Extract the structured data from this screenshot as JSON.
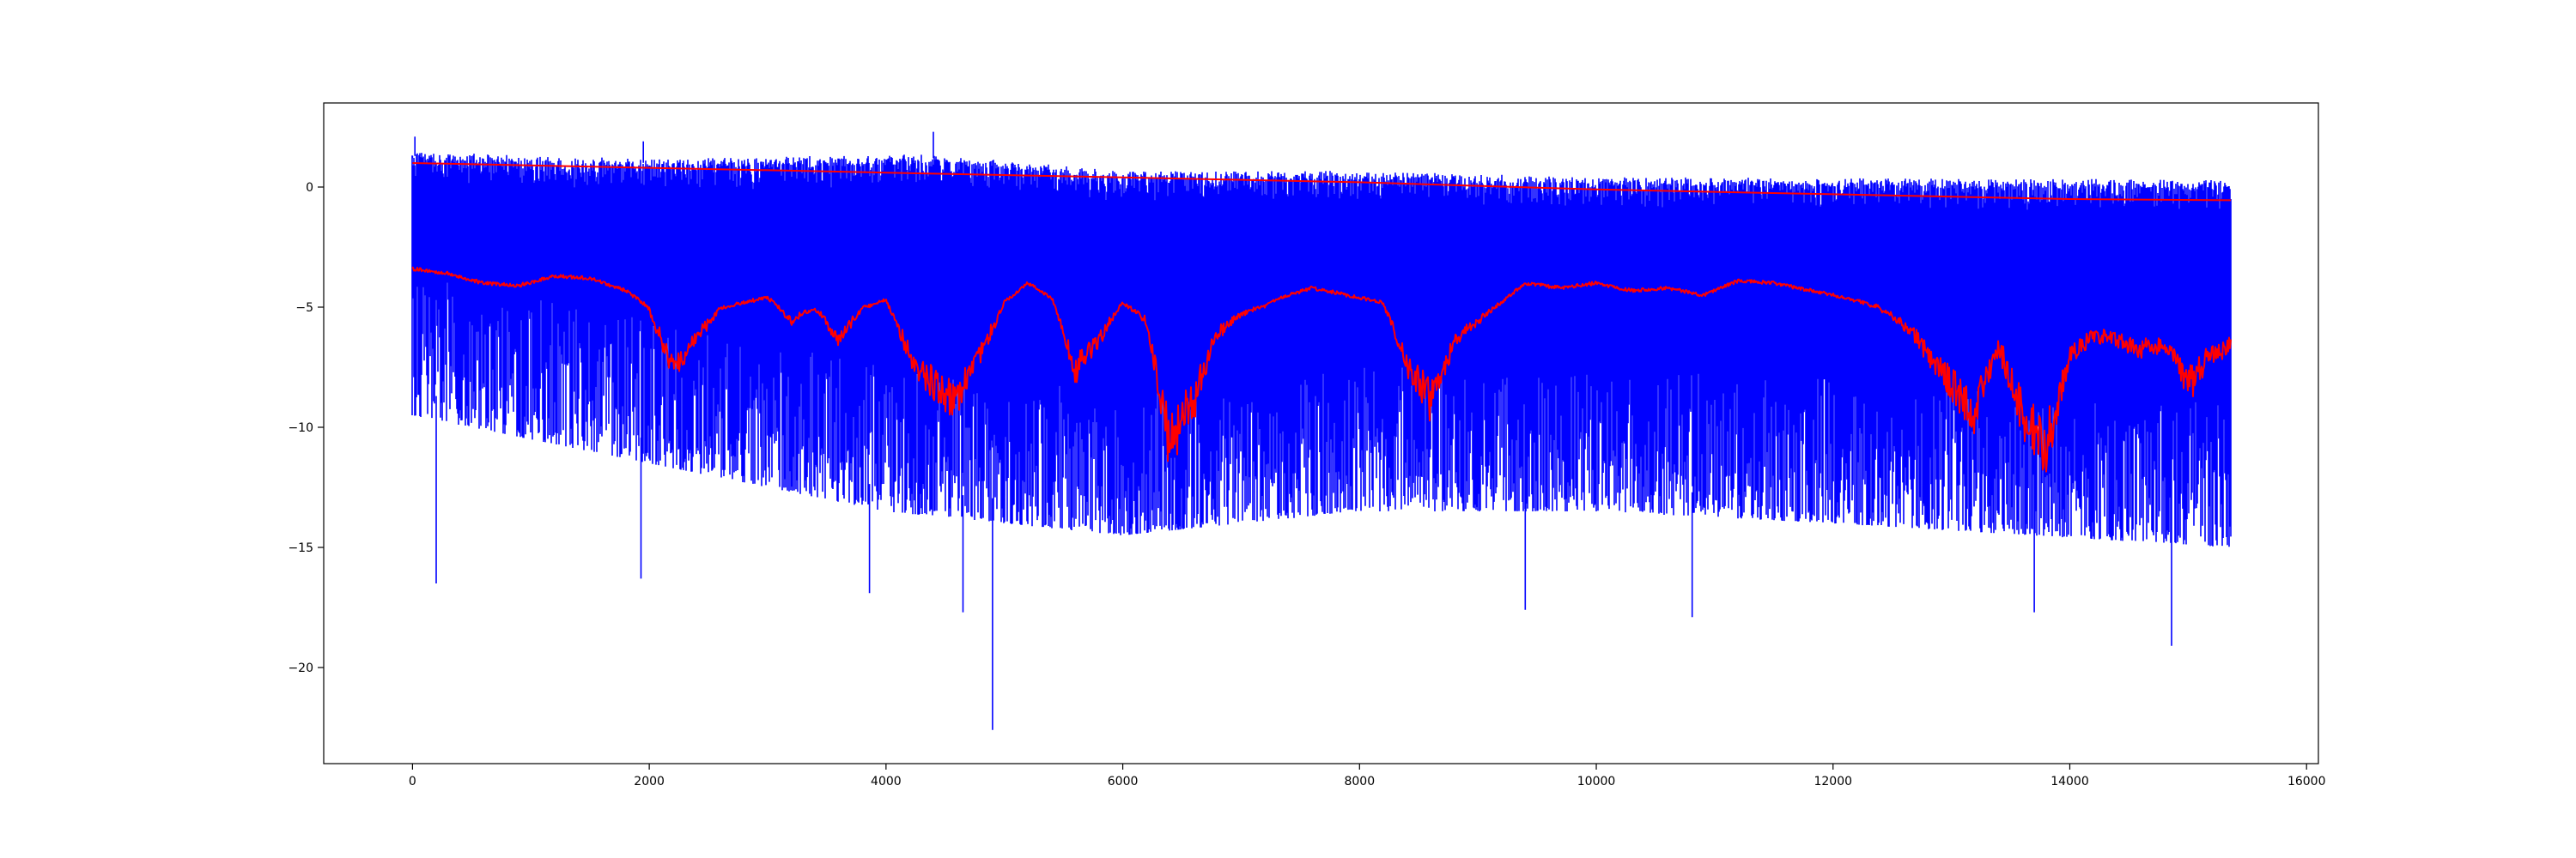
{
  "chart_data": {
    "type": "line",
    "title": "",
    "xlabel": "",
    "ylabel": "",
    "xlim": [
      -750,
      16100
    ],
    "ylim": [
      -24,
      3.5
    ],
    "grid": false,
    "legend": "none",
    "x_ticks": [
      0,
      2000,
      4000,
      6000,
      8000,
      10000,
      12000,
      14000,
      16000
    ],
    "x_tick_labels": [
      "0",
      "2000",
      "4000",
      "6000",
      "8000",
      "10000",
      "12000",
      "14000",
      "16000"
    ],
    "y_ticks": [
      0,
      -5,
      -10,
      -15,
      -20
    ],
    "y_tick_labels": [
      "0",
      "−5",
      "−10",
      "−15",
      "−20"
    ],
    "n_points": 15360,
    "series": [
      {
        "color": "#0000ff",
        "style": "dense-noise",
        "x_range": [
          0,
          15360
        ],
        "upper_envelope": [
          [
            0,
            1.3
          ],
          [
            2000,
            1.0
          ],
          [
            4400,
            1.2
          ],
          [
            6000,
            0.5
          ],
          [
            8000,
            0.5
          ],
          [
            10000,
            0.25
          ],
          [
            12000,
            0.2
          ],
          [
            15360,
            0.15
          ]
        ],
        "lower_envelope": [
          [
            0,
            -8.5
          ],
          [
            2000,
            -10.5
          ],
          [
            4000,
            -12.5
          ],
          [
            6000,
            -13.5
          ],
          [
            8000,
            -12.5
          ],
          [
            10000,
            -12.5
          ],
          [
            12000,
            -13.0
          ],
          [
            15360,
            -14.0
          ]
        ],
        "peaks": [
          [
            0,
            1.2
          ],
          [
            20,
            2.1
          ],
          [
            1950,
            1.9
          ],
          [
            4400,
            2.3
          ],
          [
            4900,
            -22.6
          ],
          [
            200,
            -16.5
          ],
          [
            1930,
            -16.3
          ],
          [
            3860,
            -16.9
          ],
          [
            4650,
            -17.7
          ],
          [
            9400,
            -17.6
          ],
          [
            10810,
            -17.9
          ],
          [
            14860,
            -19.1
          ],
          [
            13700,
            -17.7
          ]
        ]
      },
      {
        "color": "#ff0000",
        "style": "smooth-line",
        "points": [
          [
            0,
            1.0
          ],
          [
            2000,
            0.8
          ],
          [
            4000,
            0.6
          ],
          [
            6000,
            0.4
          ],
          [
            8000,
            0.2
          ],
          [
            10000,
            -0.1
          ],
          [
            12000,
            -0.3
          ],
          [
            14000,
            -0.5
          ],
          [
            15360,
            -0.55
          ]
        ]
      },
      {
        "color": "#ff0000",
        "style": "running-line",
        "points": [
          [
            0,
            -3.4
          ],
          [
            300,
            -3.6
          ],
          [
            600,
            -4.0
          ],
          [
            900,
            -4.1
          ],
          [
            1200,
            -3.7
          ],
          [
            1500,
            -3.8
          ],
          [
            1800,
            -4.3
          ],
          [
            2000,
            -5.0
          ],
          [
            2200,
            -7.0
          ],
          [
            2400,
            -6.0
          ],
          [
            2600,
            -5.0
          ],
          [
            2800,
            -4.8
          ],
          [
            3000,
            -4.6
          ],
          [
            3200,
            -5.4
          ],
          [
            3400,
            -5.0
          ],
          [
            3600,
            -6.0
          ],
          [
            3800,
            -5.0
          ],
          [
            4000,
            -4.7
          ],
          [
            4200,
            -6.5
          ],
          [
            4400,
            -7.5
          ],
          [
            4600,
            -8.0
          ],
          [
            4800,
            -6.5
          ],
          [
            5000,
            -4.8
          ],
          [
            5200,
            -4.0
          ],
          [
            5400,
            -4.6
          ],
          [
            5600,
            -7.0
          ],
          [
            5800,
            -6.0
          ],
          [
            6000,
            -4.8
          ],
          [
            6200,
            -5.4
          ],
          [
            6400,
            -9.5
          ],
          [
            6600,
            -8.0
          ],
          [
            6800,
            -5.8
          ],
          [
            7000,
            -5.2
          ],
          [
            7200,
            -4.9
          ],
          [
            7400,
            -4.5
          ],
          [
            7600,
            -4.2
          ],
          [
            7800,
            -4.4
          ],
          [
            8000,
            -4.6
          ],
          [
            8200,
            -4.8
          ],
          [
            8400,
            -6.8
          ],
          [
            8600,
            -8.0
          ],
          [
            8800,
            -6.0
          ],
          [
            9000,
            -5.4
          ],
          [
            9200,
            -4.8
          ],
          [
            9400,
            -4.0
          ],
          [
            9700,
            -4.2
          ],
          [
            10000,
            -4.0
          ],
          [
            10300,
            -4.3
          ],
          [
            10600,
            -4.2
          ],
          [
            10900,
            -4.5
          ],
          [
            11200,
            -3.9
          ],
          [
            11500,
            -4.0
          ],
          [
            11800,
            -4.3
          ],
          [
            12100,
            -4.6
          ],
          [
            12400,
            -5.0
          ],
          [
            12700,
            -5.9
          ],
          [
            13000,
            -7.5
          ],
          [
            13200,
            -8.4
          ],
          [
            13400,
            -6.2
          ],
          [
            13600,
            -8.5
          ],
          [
            13800,
            -9.5
          ],
          [
            14000,
            -6.5
          ],
          [
            14200,
            -5.9
          ],
          [
            14400,
            -6.0
          ],
          [
            14600,
            -6.3
          ],
          [
            14800,
            -6.2
          ],
          [
            15000,
            -7.5
          ],
          [
            15200,
            -6.5
          ],
          [
            15360,
            -6.2
          ]
        ]
      }
    ]
  }
}
